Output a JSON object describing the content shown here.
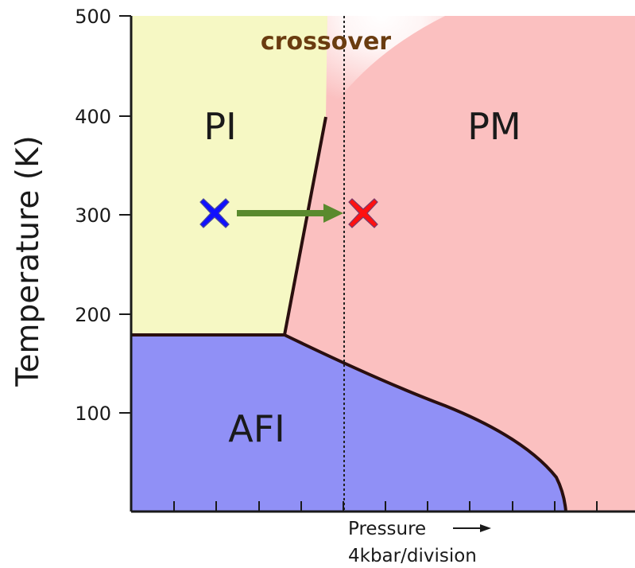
{
  "diagram": {
    "ylabel": "Temperature (K)",
    "y_ticks": [
      "500",
      "400",
      "300",
      "200",
      "100"
    ],
    "xlabel_line1": "Pressure",
    "xlabel_line2": "4kbar/division",
    "crossover_label": "crossover",
    "phases": {
      "pi": "PI",
      "pm": "PM",
      "afi": "AFI"
    },
    "colors": {
      "pi_region": "#f6f8c4",
      "pm_region": "#fbc0c0",
      "afi_region": "#9090f6",
      "boundary_line": "#2a0f0f",
      "arrow": "#5a8a2e",
      "start_marker": "#1010ff",
      "end_marker": "#ff1010",
      "crossover_text": "#6a3c10"
    },
    "markers": {
      "start": {
        "temperature_K": 300,
        "phase": "PI",
        "symbol": "x"
      },
      "end": {
        "temperature_K": 300,
        "phase": "PM",
        "symbol": "x"
      }
    }
  }
}
